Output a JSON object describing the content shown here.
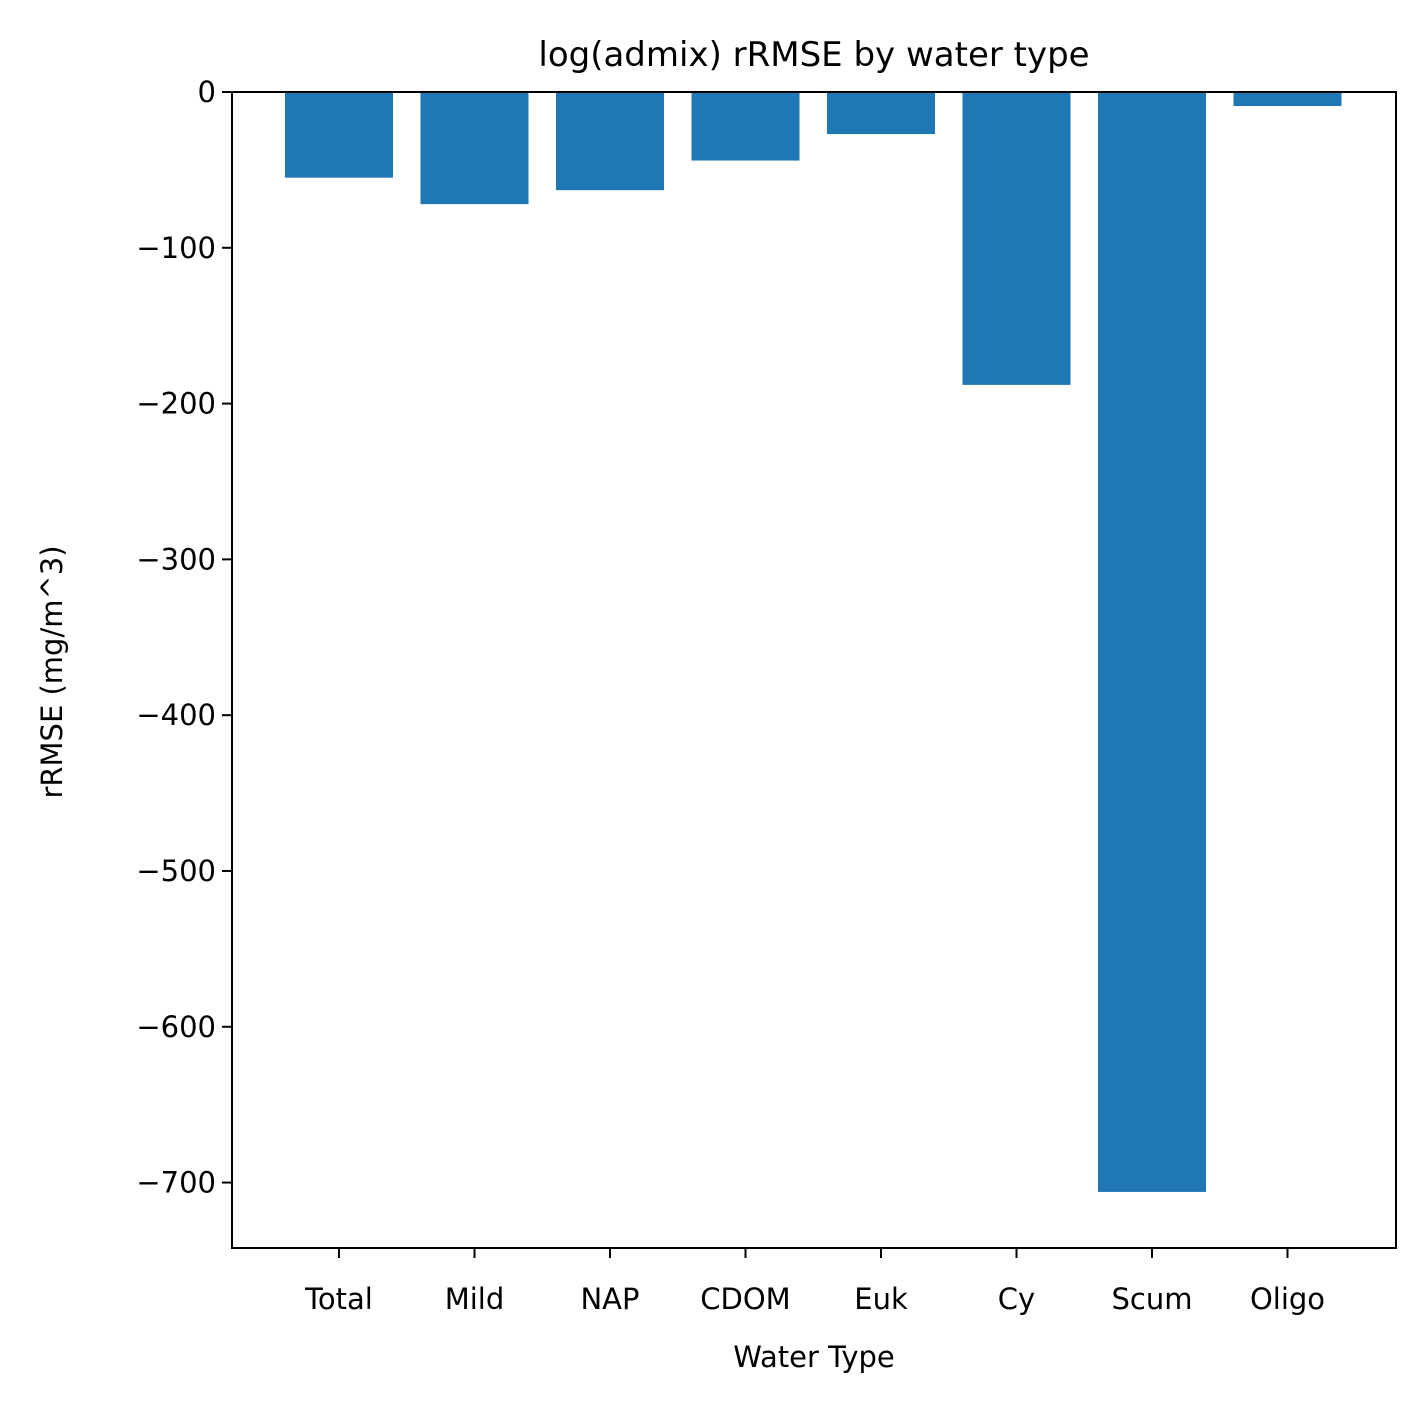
{
  "chart_data": {
    "type": "bar",
    "title": "log(admix) rRMSE by water type",
    "xlabel": "Water Type",
    "ylabel": "rRMSE (mg/m^3)",
    "categories": [
      "Total",
      "Mild",
      "NAP",
      "CDOM",
      "Euk",
      "Cy",
      "Scum",
      "Oligo"
    ],
    "values": [
      -55,
      -72,
      -63,
      -44,
      -27,
      -188,
      -706,
      -9
    ],
    "ylim": [
      -742,
      0
    ],
    "yticks": [
      0,
      -100,
      -200,
      -300,
      -400,
      -500,
      -600,
      -700
    ],
    "ytick_labels": [
      "0",
      "−100",
      "−200",
      "−300",
      "−400",
      "−500",
      "−600",
      "−700"
    ],
    "grid": false,
    "legend": "none",
    "colors": {
      "bar": "#1f77b4",
      "axis": "#000000"
    }
  }
}
